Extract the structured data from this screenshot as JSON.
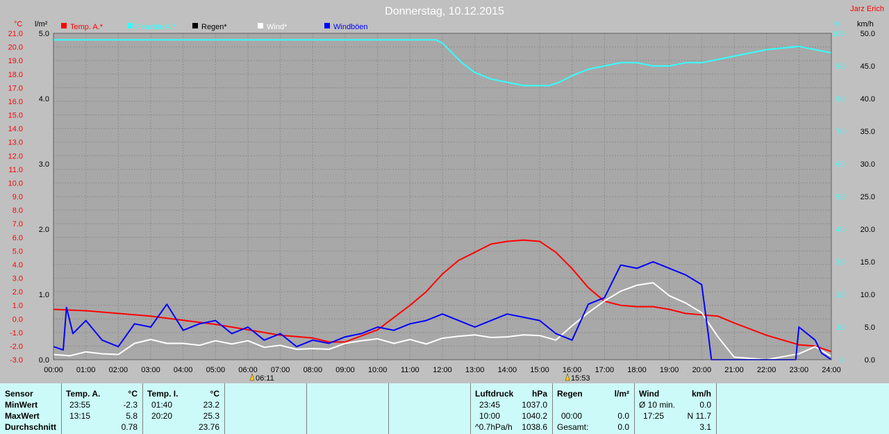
{
  "author": "Jarz Erich",
  "chart_data": {
    "type": "line",
    "title": "Donnerstag, 10.12.2015",
    "left_axis_temp": {
      "unit": "°C",
      "range": [
        -3.0,
        21.0
      ],
      "step": 1.0
    },
    "left_axis_rain": {
      "unit": "l/m²",
      "range": [
        0.0,
        5.0
      ],
      "step": 1.0
    },
    "right_axis_humidity": {
      "unit": "%",
      "range": [
        0,
        100
      ],
      "step": 10
    },
    "right_axis_wind": {
      "unit": "km/h",
      "range": [
        0.0,
        50.0
      ],
      "step": 5.0
    },
    "x_ticks": [
      "00:00",
      "01:00",
      "02:00",
      "03:00",
      "04:00",
      "05:00",
      "06:00",
      "07:00",
      "08:00",
      "09:00",
      "10:00",
      "11:00",
      "12:00",
      "13:00",
      "14:00",
      "15:00",
      "16:00",
      "17:00",
      "18:00",
      "19:00",
      "20:00",
      "21:00",
      "22:00",
      "23:00",
      "24:00"
    ],
    "sunrise": "06:11",
    "sunset": "15:53",
    "grid": true,
    "legend_placement": "top",
    "series": [
      {
        "name": "Temp. A.*",
        "axis": "temp",
        "color": "#ff0000",
        "x": [
          0,
          1,
          2,
          3,
          4,
          5,
          6,
          7,
          8,
          8.5,
          9,
          10,
          11,
          11.5,
          12,
          12.5,
          13,
          13.5,
          14,
          14.5,
          15,
          15.5,
          16,
          16.5,
          17,
          17.5,
          18,
          18.5,
          19,
          19.5,
          20,
          20.5,
          21,
          22,
          23,
          23.5,
          24
        ],
        "y": [
          0.7,
          0.6,
          0.4,
          0.2,
          -0.1,
          -0.4,
          -0.8,
          -1.2,
          -1.4,
          -1.7,
          -1.7,
          -0.8,
          1.0,
          2.0,
          3.3,
          4.3,
          4.9,
          5.5,
          5.7,
          5.8,
          5.7,
          4.9,
          3.7,
          2.3,
          1.3,
          1.0,
          0.9,
          0.9,
          0.7,
          0.4,
          0.3,
          0.2,
          -0.3,
          -1.2,
          -1.9,
          -2.0,
          -2.4
        ]
      },
      {
        "name": "Feuchte A.*",
        "axis": "humidity",
        "color": "#33ffff",
        "x": [
          0,
          6,
          11.8,
          12,
          12.3,
          12.6,
          13,
          13.5,
          14,
          14.5,
          15,
          15.3,
          15.6,
          16,
          16.5,
          17,
          17.5,
          18,
          18.5,
          19,
          19.5,
          20,
          20.5,
          21,
          22,
          23,
          24
        ],
        "y": [
          98,
          98,
          98,
          97,
          94,
          91,
          88,
          86,
          85,
          84,
          84,
          84,
          85,
          87,
          89,
          90,
          91,
          91,
          90,
          90,
          91,
          91,
          92,
          93,
          95,
          96,
          94
        ]
      },
      {
        "name": "Regen*",
        "axis": "rain",
        "color": "#000000",
        "x": [
          0,
          24
        ],
        "y": [
          0,
          0
        ]
      },
      {
        "name": "Wind*",
        "axis": "wind",
        "color": "#ffffff",
        "x": [
          0,
          0.5,
          1,
          1.5,
          2,
          2.5,
          3,
          3.5,
          4,
          4.5,
          5,
          5.5,
          6,
          6.5,
          7,
          7.5,
          8,
          8.5,
          9,
          9.5,
          10,
          10.5,
          11,
          11.5,
          12,
          12.5,
          13,
          13.5,
          14,
          14.5,
          15,
          15.5,
          16,
          16.5,
          17,
          17.5,
          18,
          18.5,
          19,
          19.5,
          20,
          20.5,
          21,
          22,
          23,
          23.5,
          24
        ],
        "y": [
          0.8,
          0.6,
          1.2,
          0.9,
          0.8,
          2.5,
          3.1,
          2.5,
          2.5,
          2.2,
          2.9,
          2.4,
          2.9,
          1.9,
          2.2,
          1.6,
          1.7,
          1.6,
          2.5,
          2.9,
          3.2,
          2.5,
          3.1,
          2.4,
          3.3,
          3.6,
          3.8,
          3.4,
          3.5,
          3.8,
          3.7,
          3.0,
          5.2,
          7.2,
          9.0,
          10.5,
          11.4,
          11.8,
          9.8,
          8.7,
          7.2,
          3.5,
          0.4,
          0.0,
          0.9,
          2.0,
          0.5
        ]
      },
      {
        "name": "Windböen",
        "axis": "wind",
        "color": "#0000ff",
        "x": [
          0,
          0.3,
          0.4,
          0.6,
          1,
          1.5,
          2,
          2.5,
          3,
          3.5,
          4,
          4.5,
          5,
          5.5,
          6,
          6.5,
          7,
          7.5,
          8,
          8.5,
          9,
          9.5,
          10,
          10.5,
          11,
          11.5,
          12,
          12.5,
          13,
          13.5,
          14,
          14.5,
          15,
          15.5,
          16,
          16.5,
          17,
          17.5,
          18,
          18.5,
          19,
          19.5,
          20,
          20.2,
          20.3,
          22.9,
          23,
          23.5,
          23.7,
          24
        ],
        "y": [
          2.0,
          1.5,
          8.0,
          4.0,
          6.0,
          3.0,
          2.0,
          5.5,
          5.0,
          8.5,
          4.5,
          5.5,
          6.0,
          4.0,
          5.0,
          3.0,
          4.0,
          2.0,
          3.0,
          2.5,
          3.5,
          4.0,
          5.0,
          4.5,
          5.5,
          6.0,
          7.0,
          6.0,
          5.0,
          6.0,
          7.0,
          6.5,
          6.0,
          4.0,
          3.0,
          8.5,
          9.5,
          14.5,
          14.0,
          15.0,
          14.0,
          13.0,
          11.5,
          4.0,
          0.0,
          0.0,
          5.0,
          3.0,
          1.0,
          0.0
        ]
      }
    ]
  },
  "table": {
    "row_labels": [
      "Sensor",
      "MinWert",
      "MaxWert",
      "Durchschnitt"
    ],
    "temp_a": {
      "title": "Temp. A.",
      "unit": "°C",
      "min_time": "23:55",
      "min": "-2.3",
      "max_time": "13:15",
      "max": "5.8",
      "avg": "0.78"
    },
    "temp_i": {
      "title": "Temp. I.",
      "unit": "°C",
      "min_time": "01:40",
      "min": "23.2",
      "max_time": "20:20",
      "max": "25.3",
      "avg": "23.76"
    },
    "pressure": {
      "title": "Luftdruck",
      "unit": "hPa",
      "min_time": "23:45",
      "min": "1037.0",
      "max_time": "10:00",
      "max": "1040.2",
      "trend_label": "^0.7hPa/h",
      "avg": "1038.6"
    },
    "rain": {
      "title": "Regen",
      "unit": "l/m²",
      "time": "00:00",
      "value": "0.0",
      "total_label": "Gesamt:",
      "total": "0.0"
    },
    "wind": {
      "title": "Wind",
      "unit": "km/h",
      "avg10_label": "Ø 10 min.",
      "avg10": "0.0",
      "time": "17:25",
      "dir_max": "N 11.7",
      "avg": "3.1"
    }
  }
}
